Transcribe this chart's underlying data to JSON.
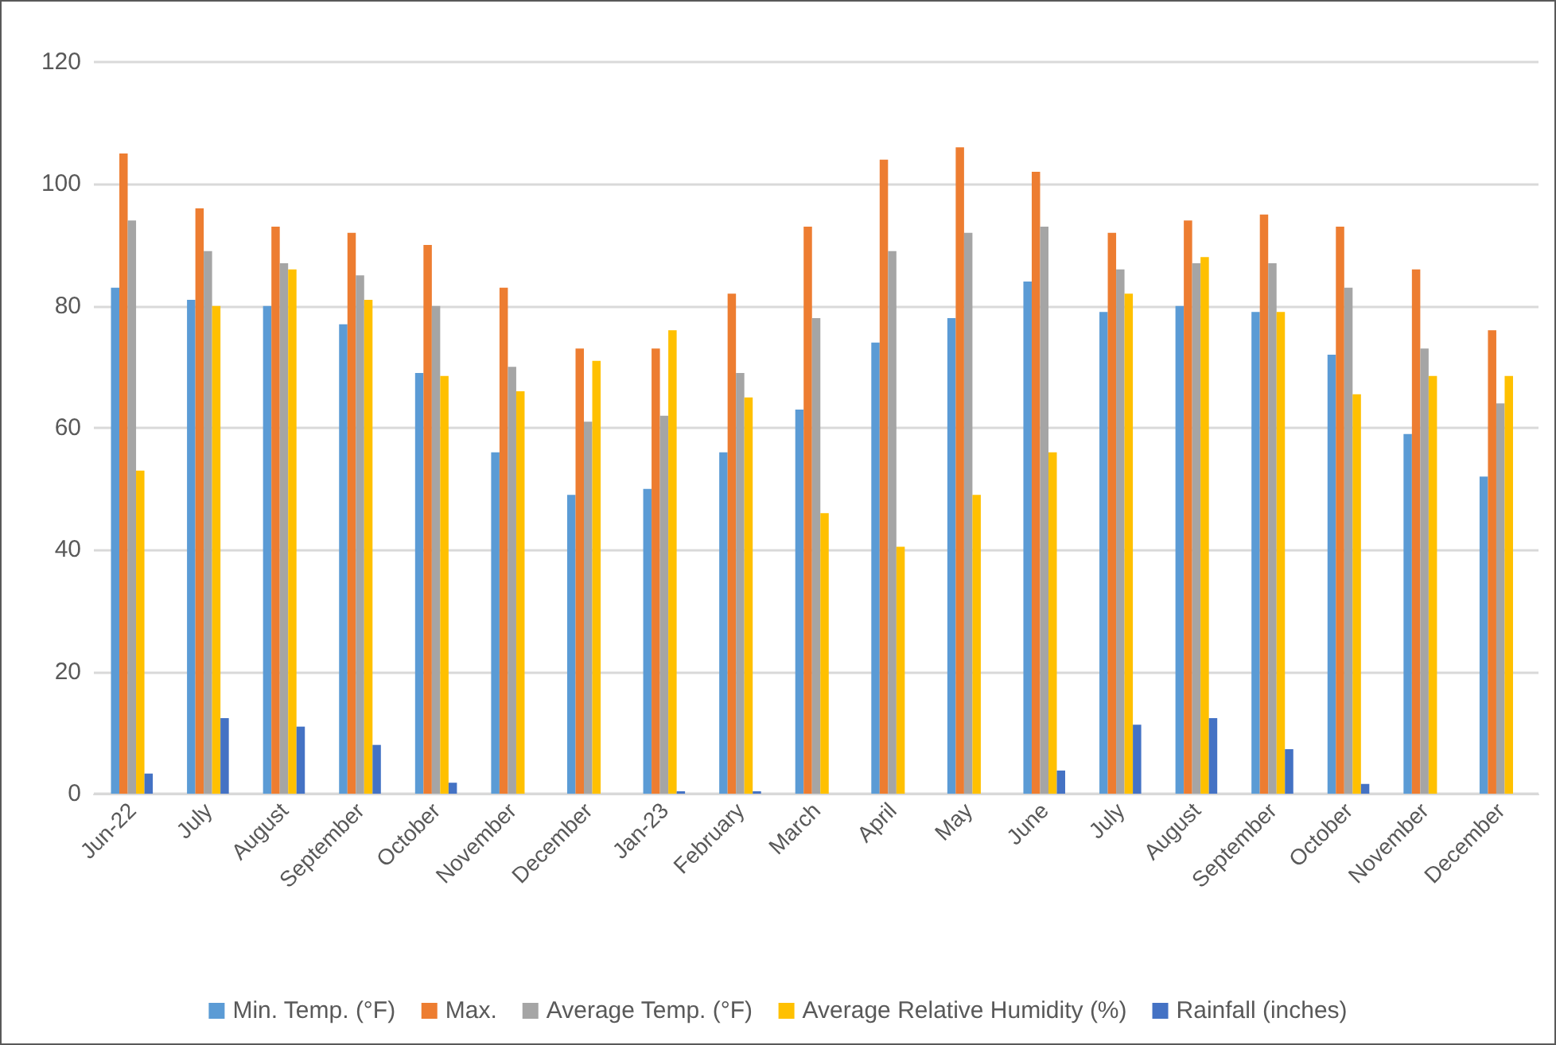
{
  "chart_data": {
    "type": "bar",
    "categories": [
      "Jun-22",
      "July",
      "August",
      "September",
      "October",
      "November",
      "December",
      "Jan-23",
      "February",
      "March",
      "April",
      "May",
      "June",
      "July",
      "August",
      "September",
      "October",
      "November",
      "December"
    ],
    "series": [
      {
        "name": "Min. Temp. (°F)",
        "color": "#5b9bd5",
        "values": [
          83,
          81,
          80,
          77,
          69,
          56,
          49,
          50,
          56,
          63,
          74,
          78,
          84,
          79,
          80,
          79,
          72,
          59,
          52
        ]
      },
      {
        "name": "Max.",
        "color": "#ed7d31",
        "values": [
          105,
          96,
          93,
          92,
          90,
          83,
          73,
          73,
          82,
          93,
          104,
          106,
          102,
          92,
          94,
          95,
          93,
          86,
          76
        ]
      },
      {
        "name": "Average Temp. (°F)",
        "color": "#a5a5a5",
        "values": [
          94,
          89,
          87,
          85,
          80,
          70,
          61,
          62,
          69,
          78,
          89,
          92,
          93,
          86,
          87,
          87,
          83,
          73,
          64
        ]
      },
      {
        "name": "Average Relative Humidity (%)",
        "color": "#ffc000",
        "values": [
          53,
          80,
          86,
          81,
          68.5,
          66,
          71,
          76,
          65,
          46,
          40.5,
          49,
          56,
          82,
          88,
          79,
          65.5,
          68.5,
          68.5
        ]
      },
      {
        "name": "Rainfall (inches)",
        "color": "#4472c4",
        "values": [
          3.3,
          12.4,
          11,
          8,
          1.8,
          0,
          0,
          0.4,
          0.4,
          0,
          0,
          0,
          3.8,
          11.3,
          12.4,
          7.3,
          1.6,
          0,
          0
        ]
      }
    ],
    "ylim": [
      0,
      120
    ],
    "yticks": [
      0,
      20,
      40,
      60,
      80,
      100,
      120
    ],
    "grid": "y",
    "legend": "bottom"
  }
}
